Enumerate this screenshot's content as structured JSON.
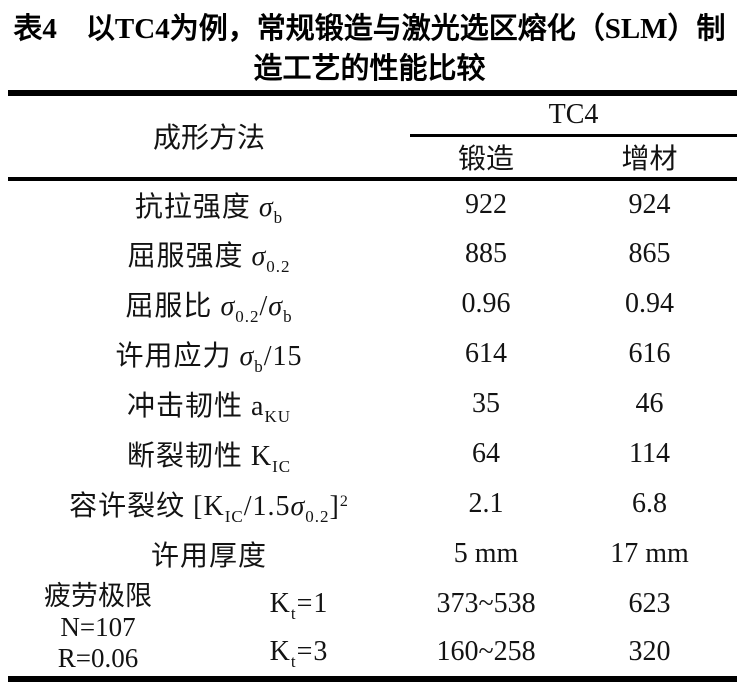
{
  "colors": {
    "text": "#000000",
    "background": "#ffffff",
    "rule": "#000000"
  },
  "title": {
    "line1": "表4　以TC4为例，常规锻造与激光选区熔化（SLM）制",
    "line2": "造工艺的性能比较"
  },
  "table": {
    "header": {
      "method": "成形方法",
      "alloy": "TC4",
      "forge": "锻造",
      "additive": "增材"
    },
    "rows": [
      {
        "parts": [
          {
            "t": "抗拉强度 "
          },
          {
            "t": "σ"
          },
          {
            "t": "b"
          }
        ],
        "forge": "922",
        "additive": "924"
      },
      {
        "parts": [
          {
            "t": "屈服强度 "
          },
          {
            "t": "σ"
          },
          {
            "t": "0.2"
          }
        ],
        "forge": "885",
        "additive": "865"
      },
      {
        "parts": [
          {
            "t": "屈服比 "
          },
          {
            "t": "σ"
          },
          {
            "t": "0.2"
          },
          {
            "t": "/"
          },
          {
            "t": "σ"
          },
          {
            "t": "b"
          }
        ],
        "forge": "0.96",
        "additive": "0.94"
      },
      {
        "parts": [
          {
            "t": "许用应力 "
          },
          {
            "t": "σ"
          },
          {
            "t": "b"
          },
          {
            "t": "/15"
          }
        ],
        "forge": "614",
        "additive": "616"
      },
      {
        "parts": [
          {
            "t": "冲击韧性 "
          },
          {
            "t": "a"
          },
          {
            "t": "KU"
          }
        ],
        "forge": "35",
        "additive": "46"
      },
      {
        "parts": [
          {
            "t": "断裂韧性 "
          },
          {
            "t": "K"
          },
          {
            "t": "IC"
          }
        ],
        "forge": "64",
        "additive": "114"
      },
      {
        "parts": [
          {
            "t": "容许裂纹 ["
          },
          {
            "t": "K"
          },
          {
            "t": "IC"
          },
          {
            "t": "/1.5"
          },
          {
            "t": "σ"
          },
          {
            "t": "0.2"
          },
          {
            "t": "]"
          },
          {
            "t": "2"
          }
        ],
        "forge": "2.1",
        "additive": "6.8"
      },
      {
        "parts": [
          {
            "t": "许用厚度"
          }
        ],
        "forge": "5 mm",
        "additive": "17 mm"
      }
    ],
    "fatigue": {
      "group": {
        "line1": "疲劳极限",
        "line2": "N=107",
        "line3": "R=0.06"
      },
      "rows": [
        {
          "k": "K",
          "k_sub": "t",
          "k_rest": "=1",
          "forge": "373~538",
          "additive": "623"
        },
        {
          "k": "K",
          "k_sub": "t",
          "k_rest": "=3",
          "forge": "160~258",
          "additive": "320"
        }
      ]
    }
  }
}
